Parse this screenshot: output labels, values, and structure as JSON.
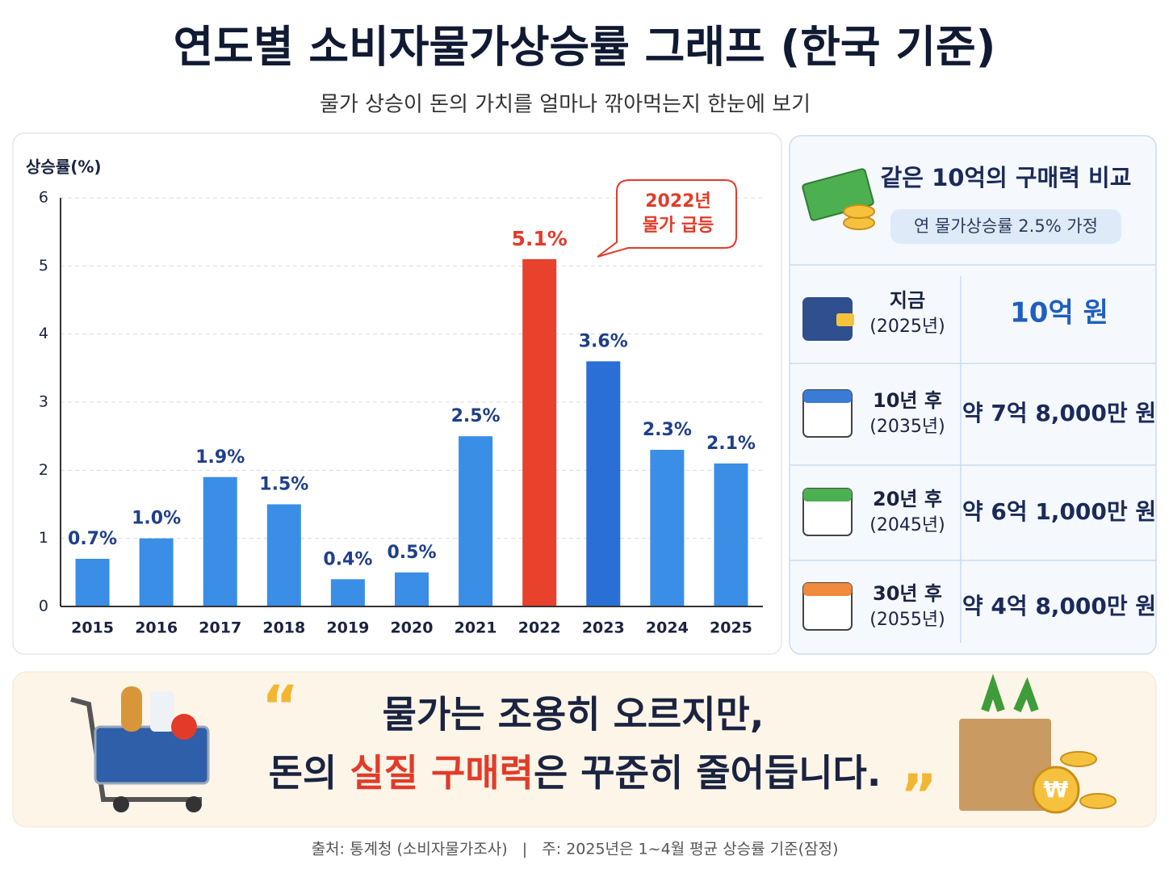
{
  "title": "연도별 소비자물가상승률 그래프 (한국 기준)",
  "subtitle": "물가 상승이 돈의 가치를 얼마나 깎아먹는지 한눈에 보기",
  "chart_data": {
    "type": "bar",
    "y_label": "상승률(%)",
    "categories": [
      "2015",
      "2016",
      "2017",
      "2018",
      "2019",
      "2020",
      "2021",
      "2022",
      "2023",
      "2024",
      "2025"
    ],
    "values": [
      0.7,
      1.0,
      1.9,
      1.5,
      0.4,
      0.5,
      2.5,
      5.1,
      3.6,
      2.3,
      2.1
    ],
    "value_labels": [
      "0.7%",
      "1.0%",
      "1.9%",
      "1.5%",
      "0.4%",
      "0.5%",
      "2.5%",
      "5.1%",
      "3.6%",
      "2.3%",
      "2.1%"
    ],
    "colors": [
      "#3a8ee6",
      "#3a8ee6",
      "#3a8ee6",
      "#3a8ee6",
      "#3a8ee6",
      "#3a8ee6",
      "#3a8ee6",
      "#e8412c",
      "#2a6fd6",
      "#3a8ee6",
      "#3a8ee6"
    ],
    "ylim": [
      0,
      6
    ],
    "yticks": [
      0,
      1,
      2,
      3,
      4,
      5,
      6
    ],
    "grid": true,
    "annotation": [
      "2022년",
      "물가 급등"
    ]
  },
  "panel": {
    "title": "같은 10억의 구매력 비교",
    "note": "연 물가상승률 2.5% 가정",
    "rows": [
      {
        "label": "지금",
        "sub": "(2025년)",
        "value": "10억 원"
      },
      {
        "label": "10년 후",
        "sub": "(2035년)",
        "value": "약 7억 8,000만 원"
      },
      {
        "label": "20년 후",
        "sub": "(2045년)",
        "value": "약 6억 1,000만 원"
      },
      {
        "label": "30년 후",
        "sub": "(2055년)",
        "value": "약 4억 8,000만 원"
      }
    ]
  },
  "quote": {
    "line1": "물가는 조용히 오르지만,",
    "line2": [
      "돈의 ",
      "실질 구매력",
      "은 꾸준히 줄어듭니다."
    ]
  },
  "footer": "출처: 통계청 (소비자물가조사)   |   주: 2025년은 1~4월 평균 상승률 기준(잠정)"
}
